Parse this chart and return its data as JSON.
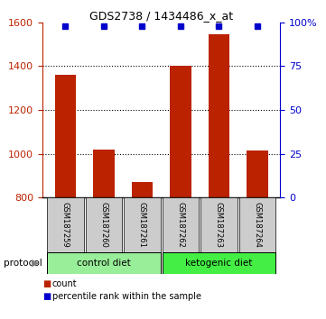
{
  "title": "GDS2738 / 1434486_x_at",
  "samples": [
    "GSM187259",
    "GSM187260",
    "GSM187261",
    "GSM187262",
    "GSM187263",
    "GSM187264"
  ],
  "counts": [
    1360,
    1020,
    870,
    1400,
    1545,
    1015
  ],
  "percentile_ranks": [
    98,
    98,
    98,
    98,
    98,
    98
  ],
  "ylim_left": [
    800,
    1600
  ],
  "ylim_right": [
    0,
    100
  ],
  "yticks_left": [
    800,
    1000,
    1200,
    1400,
    1600
  ],
  "yticks_right": [
    0,
    25,
    50,
    75,
    100
  ],
  "bar_color": "#BB2200",
  "dot_color": "#0000CC",
  "control_label": "control diet",
  "ketogenic_label": "ketogenic diet",
  "protocol_label": "protocol",
  "legend_count_label": "count",
  "legend_percentile_label": "percentile rank within the sample",
  "control_color": "#99EE99",
  "ketogenic_color": "#44EE44",
  "group_box_color": "#CCCCCC",
  "bar_width": 0.55
}
